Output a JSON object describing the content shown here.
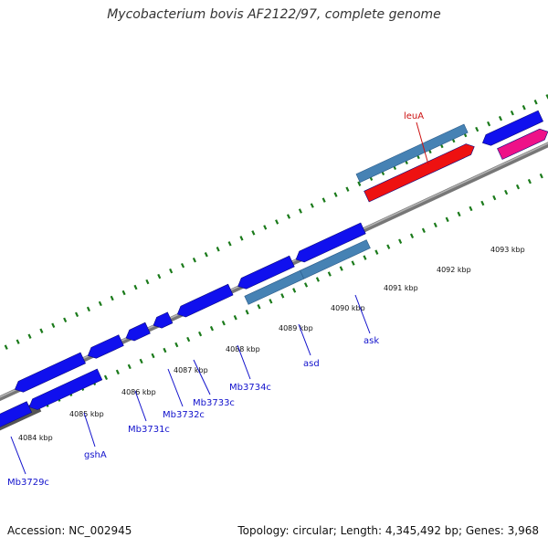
{
  "title": "Mycobacterium bovis AF2122/97, complete genome",
  "footer": {
    "accession": "Accession: NC_002945",
    "topology": "Topology: circular; Length: 4,345,492 bp; Genes: 3,968"
  },
  "colors": {
    "backbone": "#8a8a8a",
    "gene_forward": "#1010ee",
    "gene_reverse": "#1010ee",
    "operon": "#4682b4",
    "leuA_gene": "#ee1111",
    "pink_gene": "#ee1188",
    "label_blue": "#1111cc",
    "label_red": "#cc1111",
    "tick": "#1a7a1a"
  },
  "scale_labels": [
    "4084 kbp",
    "4085 kbp",
    "4086 kbp",
    "4087 kbp",
    "4088 kbp",
    "4089 kbp",
    "4090 kbp",
    "4091 kbp",
    "4092 kbp",
    "4093 kbp"
  ],
  "gene_labels": [
    {
      "name": "Mb3729c",
      "color": "blue"
    },
    {
      "name": "gshA",
      "color": "blue"
    },
    {
      "name": "Mb3731c",
      "color": "blue"
    },
    {
      "name": "Mb3732c",
      "color": "blue"
    },
    {
      "name": "Mb3733c",
      "color": "blue"
    },
    {
      "name": "Mb3734c",
      "color": "blue"
    },
    {
      "name": "asd",
      "color": "blue"
    },
    {
      "name": "ask",
      "color": "blue"
    },
    {
      "name": "leuA",
      "color": "red"
    }
  ]
}
